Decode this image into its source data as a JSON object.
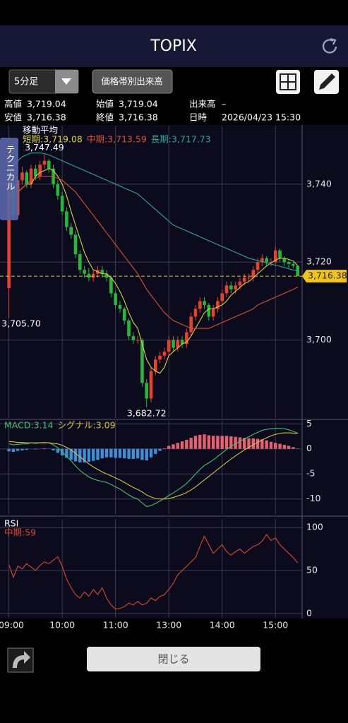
{
  "header": {
    "title": "TOPIX"
  },
  "toolbar": {
    "interval": "5分足",
    "volume_button": "価格帯別出来高"
  },
  "info": [
    [
      [
        "高値",
        "3,719.04"
      ],
      [
        "始値",
        "3,719.04"
      ],
      [
        "出来高",
        "–"
      ]
    ],
    [
      [
        "安値",
        "3,716.38"
      ],
      [
        "終値",
        "3,716.38"
      ],
      [
        "日時",
        "2026/04/23 15:30"
      ]
    ]
  ],
  "side_tab": "テクニカル",
  "footer": {
    "close_button": "閉じる"
  },
  "chart_data": [
    {
      "type": "candlestick",
      "title": "移動平均",
      "up_color": "#e8412c",
      "down_color": "#26b83a",
      "grid": true,
      "ylim": [
        3680,
        3755
      ],
      "yticks": [
        {
          "value": 3740,
          "label": "3,740"
        },
        {
          "value": 3720,
          "label": "3,720"
        },
        {
          "value": 3700,
          "label": "3,700"
        }
      ],
      "open": [
        3713.3,
        3740,
        3732,
        3741,
        3743,
        3740,
        3744,
        3742,
        3745,
        3746,
        3744,
        3740,
        3737,
        3733,
        3729,
        3727,
        3722,
        3718,
        3717,
        3716,
        3717,
        3718,
        3717,
        3716,
        3712,
        3709,
        3708,
        3705,
        3701,
        3700,
        3700,
        3689,
        3685,
        3692,
        3695,
        3696,
        3697,
        3700,
        3698,
        3700,
        3699,
        3702,
        3706,
        3708,
        3710,
        3709,
        3706,
        3708,
        3710,
        3712,
        3714,
        3713,
        3714,
        3715,
        3716,
        3716,
        3718,
        3720,
        3721,
        3720,
        3720,
        3723,
        3721,
        3720,
        3719.5,
        3719.04
      ],
      "high": [
        3741,
        3741,
        3742,
        3744.5,
        3743.5,
        3745,
        3745,
        3746,
        3747.49,
        3746.5,
        3745,
        3741,
        3738,
        3734,
        3730,
        3728,
        3723,
        3719,
        3718.5,
        3718,
        3719,
        3719,
        3718,
        3716.5,
        3712.5,
        3710,
        3708.5,
        3705.5,
        3702,
        3701,
        3700.5,
        3690,
        3693,
        3696,
        3697,
        3698,
        3701,
        3701,
        3701,
        3701,
        3703,
        3707,
        3709,
        3711,
        3711,
        3709.5,
        3709,
        3711,
        3713,
        3715,
        3715,
        3715,
        3716,
        3717,
        3717,
        3719,
        3721,
        3722,
        3721.5,
        3721,
        3724,
        3723.5,
        3721.5,
        3720.5,
        3720,
        3719.04
      ],
      "low": [
        3705.7,
        3731,
        3731,
        3740,
        3739,
        3739,
        3741,
        3741,
        3744,
        3743,
        3739,
        3736,
        3732,
        3728,
        3726,
        3721,
        3717,
        3716,
        3715,
        3715,
        3716,
        3716,
        3715,
        3711,
        3708,
        3707,
        3704,
        3700,
        3699,
        3699,
        3688,
        3682.72,
        3684,
        3691,
        3694,
        3695,
        3696,
        3697,
        3697,
        3698,
        3698,
        3701,
        3705,
        3707,
        3708,
        3705,
        3705,
        3707,
        3709,
        3711,
        3712,
        3712,
        3713,
        3714,
        3715,
        3715,
        3717,
        3719,
        3719,
        3719,
        3719,
        3720,
        3719,
        3718.5,
        3718.5,
        3716.38
      ],
      "close": [
        3740,
        3732,
        3741,
        3743,
        3740,
        3744,
        3742,
        3745,
        3746,
        3744,
        3740,
        3737,
        3733,
        3729,
        3727,
        3722,
        3718,
        3717,
        3716,
        3717,
        3718,
        3717,
        3716,
        3712,
        3709,
        3708,
        3705,
        3701,
        3700,
        3700,
        3689,
        3685,
        3692,
        3695,
        3696,
        3697,
        3700,
        3698,
        3700,
        3699,
        3702,
        3706,
        3708,
        3710,
        3709,
        3706,
        3708,
        3710,
        3712,
        3714,
        3713,
        3714,
        3715,
        3716,
        3716,
        3718,
        3720,
        3721,
        3720,
        3720,
        3723,
        3721,
        3720,
        3719.5,
        3719.04,
        3716.38
      ],
      "high_labels": [
        null,
        null,
        null,
        null,
        null,
        null,
        null,
        null,
        "3,747.49",
        null,
        null,
        null,
        null,
        null,
        null,
        null,
        null,
        null,
        null,
        null,
        null,
        null,
        null,
        null,
        null,
        null,
        null,
        null,
        null,
        null,
        null,
        null,
        null,
        null,
        null,
        null,
        null,
        null,
        null,
        null,
        null,
        null,
        null,
        null,
        null,
        null,
        null,
        null,
        null,
        null,
        null,
        null,
        null,
        null,
        null,
        null,
        null,
        null,
        null,
        null,
        null,
        null,
        null,
        null,
        null,
        null
      ],
      "low_labels": [
        "3,705.70",
        null,
        null,
        null,
        null,
        null,
        null,
        null,
        null,
        null,
        null,
        null,
        null,
        null,
        null,
        null,
        null,
        null,
        null,
        null,
        null,
        null,
        null,
        null,
        null,
        null,
        null,
        null,
        null,
        null,
        null,
        "3,682.72",
        null,
        null,
        null,
        null,
        null,
        null,
        null,
        null,
        null,
        null,
        null,
        null,
        null,
        null,
        null,
        null,
        null,
        null,
        null,
        null,
        null,
        null,
        null,
        null,
        null,
        null,
        null,
        null,
        null,
        null,
        null,
        null,
        null,
        null
      ],
      "close_labels": [
        null,
        null,
        null,
        null,
        null,
        null,
        null,
        null,
        null,
        null,
        null,
        null,
        null,
        null,
        null,
        null,
        null,
        null,
        null,
        null,
        null,
        null,
        null,
        null,
        null,
        null,
        null,
        null,
        null,
        null,
        null,
        null,
        null,
        null,
        null,
        null,
        null,
        null,
        null,
        null,
        null,
        null,
        null,
        null,
        null,
        null,
        null,
        null,
        null,
        null,
        null,
        null,
        null,
        null,
        null,
        null,
        null,
        null,
        null,
        null,
        null,
        null,
        null,
        null,
        null,
        "3,716.38"
      ],
      "series": [
        {
          "name": "短期:3,719.08",
          "color": "#d8d23a",
          "values": [
            3738,
            3737,
            3738,
            3739,
            3740,
            3740,
            3742,
            3743,
            3743.5,
            3744,
            3743.5,
            3742,
            3740,
            3737,
            3733,
            3729.5,
            3726,
            3722.5,
            3720,
            3718,
            3717.5,
            3717,
            3717,
            3716,
            3714.5,
            3712.5,
            3710,
            3707,
            3704.5,
            3703,
            3699,
            3695,
            3693,
            3692,
            3691.5,
            3693,
            3696,
            3697,
            3698,
            3699,
            3699.5,
            3701,
            3703,
            3705,
            3707,
            3708,
            3708,
            3708.5,
            3709,
            3710,
            3711.5,
            3712.5,
            3713.5,
            3714.5,
            3715,
            3716,
            3717,
            3718,
            3719,
            3719.8,
            3720.5,
            3721,
            3721,
            3720.7,
            3720.3,
            3719.08
          ]
        },
        {
          "name": "中期:3,713.59",
          "color": "#d8502e",
          "values": [
            3736,
            3737,
            3738,
            3739,
            3740,
            3741,
            3741.5,
            3742,
            3742,
            3742,
            3742,
            3741.5,
            3741,
            3740,
            3739,
            3738,
            3736.5,
            3735,
            3733.5,
            3732,
            3730.5,
            3729,
            3727.5,
            3726,
            3724.5,
            3723,
            3721.5,
            3720,
            3718.5,
            3717,
            3715,
            3713,
            3711.5,
            3710,
            3708.5,
            3707,
            3706,
            3705,
            3704.5,
            3704,
            3703.5,
            3703,
            3703,
            3703,
            3703,
            3703,
            3703.5,
            3704,
            3704.5,
            3705,
            3705.5,
            3706,
            3706.5,
            3707,
            3707.5,
            3708,
            3709,
            3709.5,
            3710,
            3710.5,
            3711,
            3711.5,
            3712,
            3712.5,
            3713,
            3713.59
          ]
        },
        {
          "name": "長期:3,717.73",
          "color": "#27a898",
          "values": [
            3744,
            3745,
            3746,
            3747,
            3747.5,
            3748,
            3748,
            3748,
            3747.8,
            3747.5,
            3747,
            3746.5,
            3746,
            3745.5,
            3745,
            3744.5,
            3744,
            3743.5,
            3743,
            3742.5,
            3742,
            3741.5,
            3741,
            3740.5,
            3740,
            3739.5,
            3739,
            3738.5,
            3738,
            3737.5,
            3736.5,
            3735.5,
            3734.5,
            3733.5,
            3732.5,
            3731.5,
            3730.5,
            3729.5,
            3729,
            3728.5,
            3728,
            3727.5,
            3727,
            3726.5,
            3726,
            3725.5,
            3725,
            3724.5,
            3724,
            3723.5,
            3723,
            3722.5,
            3722,
            3721.5,
            3721,
            3720.7,
            3720.4,
            3720.1,
            3719.8,
            3719.5,
            3719.2,
            3718.9,
            3718.6,
            3718.3,
            3718,
            3717.73
          ]
        }
      ]
    },
    {
      "type": "combo",
      "positive_color": "#e8606e",
      "negative_color": "#3d8fd8",
      "grid": true,
      "ylim": [
        -13,
        5.6
      ],
      "yticks": [
        5,
        0,
        -5,
        -10
      ],
      "histogram": [
        -0.5,
        -0.6,
        -0.4,
        -0.3,
        -0.2,
        0,
        -0.1,
        0,
        0.1,
        0,
        -0.3,
        -0.8,
        -1.3,
        -1.8,
        -2.2,
        -2.5,
        -2.7,
        -2.7,
        -2.6,
        -2.4,
        -2.2,
        -1.9,
        -1.7,
        -1.7,
        -1.8,
        -1.8,
        -1.9,
        -2,
        -2,
        -1.9,
        -2.2,
        -2.3,
        -1.7,
        -1,
        -0.4,
        0.1,
        0.6,
        0.9,
        1.2,
        1.5,
        1.8,
        2.2,
        2.6,
        2.8,
        2.9,
        2.7,
        2.6,
        2.6,
        2.6,
        2.6,
        2.5,
        2.4,
        2.3,
        2.2,
        2.1,
        2.1,
        2,
        1.9,
        1.7,
        1.4,
        1.2,
        1,
        0.8,
        0.6,
        0.35,
        0.05
      ],
      "series": [
        {
          "name": "MACD:3.14",
          "color": "#3cc46b",
          "values": [
            1,
            0.8,
            0.9,
            1,
            1,
            1.2,
            1.1,
            1.2,
            1.3,
            1.2,
            0.8,
            0.2,
            -0.6,
            -1.5,
            -2.4,
            -3.4,
            -4.3,
            -5,
            -5.6,
            -6,
            -6.3,
            -6.5,
            -6.7,
            -7.1,
            -7.6,
            -8,
            -8.6,
            -9.2,
            -9.7,
            -10,
            -10.8,
            -11.5,
            -11.3,
            -10.9,
            -10.4,
            -9.9,
            -9.3,
            -8.8,
            -8.2,
            -7.6,
            -6.9,
            -6,
            -5,
            -4.1,
            -3.3,
            -2.8,
            -2.2,
            -1.5,
            -0.8,
            -0.1,
            0.5,
            1,
            1.5,
            2,
            2.4,
            2.9,
            3.3,
            3.7,
            3.9,
            4,
            4.1,
            4.1,
            4,
            3.8,
            3.5,
            3.14
          ]
        },
        {
          "name": "シグナル:3.09",
          "color": "#d6c23a",
          "values": [
            1.5,
            1.4,
            1.3,
            1.3,
            1.2,
            1.2,
            1.2,
            1.2,
            1.2,
            1.2,
            1.1,
            1,
            0.7,
            0.3,
            -0.2,
            -0.9,
            -1.6,
            -2.3,
            -3,
            -3.6,
            -4.1,
            -4.6,
            -5,
            -5.4,
            -5.8,
            -6.2,
            -6.7,
            -7.2,
            -7.7,
            -8.1,
            -8.6,
            -9.2,
            -9.6,
            -9.9,
            -10,
            -10,
            -9.9,
            -9.7,
            -9.4,
            -9.1,
            -8.7,
            -8.2,
            -7.6,
            -6.9,
            -6.2,
            -5.5,
            -4.8,
            -4.1,
            -3.4,
            -2.7,
            -2,
            -1.4,
            -0.8,
            -0.2,
            0.3,
            0.8,
            1.3,
            1.8,
            2.2,
            2.6,
            2.9,
            3.1,
            3.2,
            3.2,
            3.15,
            3.09
          ]
        }
      ]
    },
    {
      "type": "line",
      "title": "RSI",
      "grid": true,
      "ylim": [
        -5,
        110
      ],
      "yticks": [
        100,
        50,
        0
      ],
      "categories": [
        "09:00",
        null,
        null,
        null,
        null,
        null,
        null,
        null,
        null,
        null,
        null,
        null,
        "10:00",
        null,
        null,
        null,
        null,
        null,
        null,
        null,
        null,
        null,
        null,
        null,
        "11:00",
        null,
        null,
        null,
        null,
        null,
        null,
        null,
        null,
        null,
        null,
        null,
        "13:00",
        null,
        null,
        null,
        null,
        null,
        null,
        null,
        null,
        null,
        null,
        null,
        "14:00",
        null,
        null,
        null,
        null,
        null,
        null,
        null,
        null,
        null,
        null,
        null,
        "15:00",
        null,
        null,
        null,
        null,
        null
      ],
      "series": [
        {
          "name": "中期:59",
          "color": "#d9472a",
          "values": [
            57,
            42,
            55,
            52,
            58,
            54,
            50,
            56,
            60,
            58,
            62,
            66,
            55,
            40,
            30,
            22,
            18,
            25,
            20,
            28,
            22,
            30,
            18,
            10,
            5,
            6,
            8,
            12,
            10,
            14,
            10,
            12,
            18,
            15,
            20,
            22,
            28,
            35,
            45,
            50,
            55,
            60,
            65,
            78,
            90,
            80,
            70,
            75,
            80,
            72,
            68,
            72,
            75,
            70,
            74,
            78,
            80,
            84,
            92,
            85,
            88,
            80,
            75,
            70,
            65,
            59
          ]
        }
      ]
    }
  ]
}
